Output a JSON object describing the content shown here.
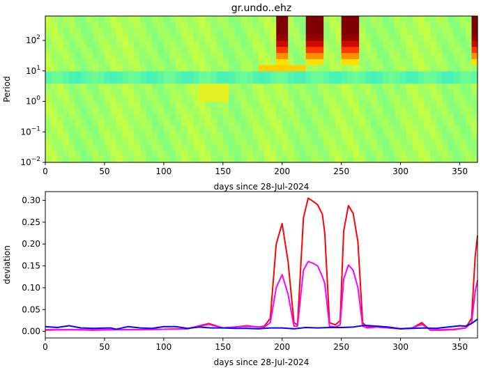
{
  "chart_data": [
    {
      "type": "heatmap",
      "title": "gr.undo..ehz",
      "xlabel": "days since 28-Jul-2024",
      "ylabel": "Period",
      "xlim": [
        0,
        365
      ],
      "ylim_log10": [
        -2,
        2.8
      ],
      "x_ticks": [
        0,
        50,
        100,
        150,
        200,
        250,
        300,
        350
      ],
      "y_ticks": [
        {
          "value": -2,
          "base": "10",
          "exp": "−2"
        },
        {
          "value": -1,
          "base": "10",
          "exp": "−1"
        },
        {
          "value": 0,
          "base": "10",
          "exp": "0"
        },
        {
          "value": 1,
          "base": "10",
          "exp": "1"
        },
        {
          "value": 2,
          "base": "10",
          "exp": "2"
        }
      ],
      "colormap": [
        "#0000b3",
        "#0050ff",
        "#00c8ff",
        "#40f0c0",
        "#80ff80",
        "#c8ff40",
        "#ffe000",
        "#ff8000",
        "#ff2000",
        "#b00000",
        "#800000"
      ],
      "background_level": 0.45,
      "hot_periods_days": [
        [
          196,
          207
        ],
        [
          219,
          236
        ],
        [
          250,
          267
        ],
        [
          362,
          365
        ]
      ],
      "blue_band_log10_period": [
        0.6,
        1.0
      ]
    },
    {
      "type": "line",
      "title": "",
      "xlabel": "days since 28-Jul-2024",
      "ylabel": "deviation",
      "xlim": [
        0,
        365
      ],
      "ylim": [
        -0.015,
        0.32
      ],
      "x_ticks": [
        0,
        50,
        100,
        150,
        200,
        250,
        300,
        350
      ],
      "y_ticks": [
        "0.00",
        "0.05",
        "0.10",
        "0.15",
        "0.20",
        "0.25",
        "0.30"
      ],
      "series": [
        {
          "name": "red",
          "color": "#ff0000",
          "x": [
            0,
            20,
            40,
            60,
            80,
            100,
            120,
            138,
            150,
            160,
            170,
            180,
            185,
            190,
            195,
            200,
            205,
            210,
            213,
            218,
            222,
            226,
            230,
            234,
            236,
            240,
            245,
            249,
            252,
            256,
            260,
            264,
            268,
            272,
            280,
            290,
            300,
            310,
            318,
            325,
            335,
            345,
            355,
            360,
            363,
            365
          ],
          "y": [
            0.003,
            0.004,
            0.003,
            0.004,
            0.004,
            0.005,
            0.006,
            0.018,
            0.008,
            0.01,
            0.013,
            0.01,
            0.012,
            0.03,
            0.2,
            0.247,
            0.16,
            0.02,
            0.015,
            0.26,
            0.305,
            0.298,
            0.29,
            0.268,
            0.225,
            0.02,
            0.015,
            0.025,
            0.23,
            0.288,
            0.27,
            0.205,
            0.02,
            0.01,
            0.012,
            0.008,
            0.006,
            0.008,
            0.02,
            0.003,
            0.003,
            0.004,
            0.008,
            0.03,
            0.17,
            0.219
          ]
        },
        {
          "name": "magenta",
          "color": "#ff00ff",
          "x": [
            0,
            20,
            40,
            60,
            80,
            100,
            120,
            138,
            150,
            160,
            170,
            180,
            185,
            190,
            195,
            200,
            205,
            210,
            213,
            218,
            222,
            226,
            230,
            234,
            236,
            240,
            245,
            249,
            252,
            256,
            260,
            264,
            268,
            272,
            280,
            290,
            300,
            310,
            318,
            325,
            335,
            345,
            355,
            360,
            363,
            365
          ],
          "y": [
            0.004,
            0.004,
            0.004,
            0.004,
            0.004,
            0.005,
            0.006,
            0.016,
            0.008,
            0.01,
            0.012,
            0.01,
            0.01,
            0.02,
            0.1,
            0.13,
            0.085,
            0.012,
            0.012,
            0.14,
            0.16,
            0.156,
            0.15,
            0.125,
            0.11,
            0.012,
            0.01,
            0.015,
            0.12,
            0.152,
            0.14,
            0.1,
            0.012,
            0.008,
            0.01,
            0.008,
            0.006,
            0.008,
            0.016,
            0.004,
            0.004,
            0.005,
            0.008,
            0.02,
            0.09,
            0.117
          ]
        },
        {
          "name": "blue",
          "color": "#0000ff",
          "x": [
            0,
            10,
            20,
            30,
            40,
            55,
            60,
            70,
            80,
            90,
            100,
            110,
            120,
            130,
            140,
            150,
            160,
            170,
            180,
            190,
            200,
            210,
            220,
            230,
            240,
            250,
            260,
            270,
            280,
            290,
            300,
            310,
            320,
            330,
            340,
            350,
            355,
            360,
            365
          ],
          "y": [
            0.011,
            0.009,
            0.013,
            0.008,
            0.007,
            0.008,
            0.005,
            0.011,
            0.008,
            0.007,
            0.011,
            0.011,
            0.007,
            0.01,
            0.008,
            0.008,
            0.007,
            0.007,
            0.006,
            0.008,
            0.008,
            0.006,
            0.009,
            0.008,
            0.009,
            0.009,
            0.01,
            0.014,
            0.012,
            0.01,
            0.006,
            0.007,
            0.008,
            0.007,
            0.01,
            0.013,
            0.012,
            0.018,
            0.028
          ]
        }
      ]
    }
  ]
}
